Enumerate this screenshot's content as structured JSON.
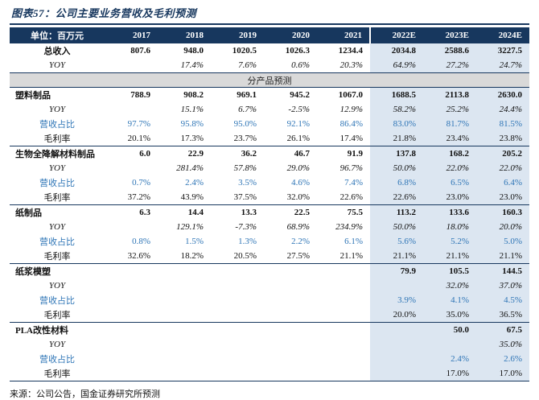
{
  "title": "图表57：公司主要业务营收及毛利预测",
  "source": "来源：公司公告，国金证券研究所预测",
  "colors": {
    "title_text": "#17375E",
    "header_bg": "#17375E",
    "forecast_bg": "#DCE6F1",
    "section_bg": "#D9D9D9",
    "share_text": "#2E75B6"
  },
  "chart_data": {
    "type": "table",
    "title": "公司主要业务营收及毛利预测",
    "columns": [
      "单位：百万元",
      "2017",
      "2018",
      "2019",
      "2020",
      "2021",
      "2022E",
      "2023E",
      "2024E"
    ],
    "forecast_columns": [
      "2022E",
      "2023E",
      "2024E"
    ],
    "rows": [
      {
        "kind": "data",
        "style": "main",
        "label_align": "center",
        "label": "总收入",
        "values": [
          "807.6",
          "948.0",
          "1020.5",
          "1026.3",
          "1234.4",
          "2034.8",
          "2588.6",
          "3227.5"
        ]
      },
      {
        "kind": "data",
        "style": "yoy",
        "label": "YOY",
        "values": [
          "",
          "17.4%",
          "7.6%",
          "0.6%",
          "20.3%",
          "64.9%",
          "27.2%",
          "24.7%"
        ]
      },
      {
        "kind": "section",
        "label": "分产品预测"
      },
      {
        "kind": "data",
        "style": "main",
        "label": "塑料制品",
        "values": [
          "788.9",
          "908.2",
          "969.1",
          "945.2",
          "1067.0",
          "1688.5",
          "2113.8",
          "2630.0"
        ]
      },
      {
        "kind": "data",
        "style": "yoy",
        "label": "YOY",
        "values": [
          "",
          "15.1%",
          "6.7%",
          "-2.5%",
          "12.9%",
          "58.2%",
          "25.2%",
          "24.4%"
        ]
      },
      {
        "kind": "data",
        "style": "share",
        "label": "营收占比",
        "values": [
          "97.7%",
          "95.8%",
          "95.0%",
          "92.1%",
          "86.4%",
          "83.0%",
          "81.7%",
          "81.5%"
        ]
      },
      {
        "kind": "data",
        "style": "margin",
        "label": "毛利率",
        "values": [
          "20.1%",
          "17.3%",
          "23.7%",
          "26.1%",
          "17.4%",
          "21.8%",
          "23.4%",
          "23.8%"
        ]
      },
      {
        "kind": "data",
        "style": "main",
        "label": "生物全降解材料制品",
        "values": [
          "6.0",
          "22.9",
          "36.2",
          "46.7",
          "91.9",
          "137.8",
          "168.2",
          "205.2"
        ]
      },
      {
        "kind": "data",
        "style": "yoy",
        "label": "YOY",
        "values": [
          "",
          "281.4%",
          "57.8%",
          "29.0%",
          "96.7%",
          "50.0%",
          "22.0%",
          "22.0%"
        ]
      },
      {
        "kind": "data",
        "style": "share",
        "label": "营收占比",
        "values": [
          "0.7%",
          "2.4%",
          "3.5%",
          "4.6%",
          "7.4%",
          "6.8%",
          "6.5%",
          "6.4%"
        ]
      },
      {
        "kind": "data",
        "style": "margin",
        "label": "毛利率",
        "values": [
          "37.2%",
          "43.9%",
          "37.5%",
          "32.0%",
          "22.6%",
          "22.6%",
          "23.0%",
          "23.0%"
        ]
      },
      {
        "kind": "data",
        "style": "main",
        "label": "纸制品",
        "values": [
          "6.3",
          "14.4",
          "13.3",
          "22.5",
          "75.5",
          "113.2",
          "133.6",
          "160.3"
        ]
      },
      {
        "kind": "data",
        "style": "yoy",
        "label": "YOY",
        "values": [
          "",
          "129.1%",
          "-7.3%",
          "68.9%",
          "234.9%",
          "50.0%",
          "18.0%",
          "20.0%"
        ]
      },
      {
        "kind": "data",
        "style": "share",
        "label": "营收占比",
        "values": [
          "0.8%",
          "1.5%",
          "1.3%",
          "2.2%",
          "6.1%",
          "5.6%",
          "5.2%",
          "5.0%"
        ]
      },
      {
        "kind": "data",
        "style": "margin",
        "label": "毛利率",
        "values": [
          "32.6%",
          "18.2%",
          "20.5%",
          "27.5%",
          "21.1%",
          "21.1%",
          "21.1%",
          "21.1%"
        ]
      },
      {
        "kind": "data",
        "style": "main",
        "label": "纸浆模塑",
        "values": [
          "",
          "",
          "",
          "",
          "",
          "79.9",
          "105.5",
          "144.5"
        ]
      },
      {
        "kind": "data",
        "style": "yoy",
        "label": "YOY",
        "values": [
          "",
          "",
          "",
          "",
          "",
          "",
          "32.0%",
          "37.0%"
        ]
      },
      {
        "kind": "data",
        "style": "share",
        "label": "营收占比",
        "values": [
          "",
          "",
          "",
          "",
          "",
          "3.9%",
          "4.1%",
          "4.5%"
        ]
      },
      {
        "kind": "data",
        "style": "margin",
        "label": "毛利率",
        "values": [
          "",
          "",
          "",
          "",
          "",
          "20.0%",
          "35.0%",
          "36.5%"
        ]
      },
      {
        "kind": "data",
        "style": "main",
        "label": "PLA改性材料",
        "values": [
          "",
          "",
          "",
          "",
          "",
          "",
          "50.0",
          "67.5"
        ]
      },
      {
        "kind": "data",
        "style": "yoy",
        "label": "YOY",
        "values": [
          "",
          "",
          "",
          "",
          "",
          "",
          "",
          "35.0%"
        ]
      },
      {
        "kind": "data",
        "style": "share",
        "label": "营收占比",
        "values": [
          "",
          "",
          "",
          "",
          "",
          "",
          "2.4%",
          "2.6%"
        ]
      },
      {
        "kind": "data",
        "style": "margin",
        "label": "毛利率",
        "values": [
          "",
          "",
          "",
          "",
          "",
          "",
          "17.0%",
          "17.0%"
        ]
      }
    ]
  }
}
